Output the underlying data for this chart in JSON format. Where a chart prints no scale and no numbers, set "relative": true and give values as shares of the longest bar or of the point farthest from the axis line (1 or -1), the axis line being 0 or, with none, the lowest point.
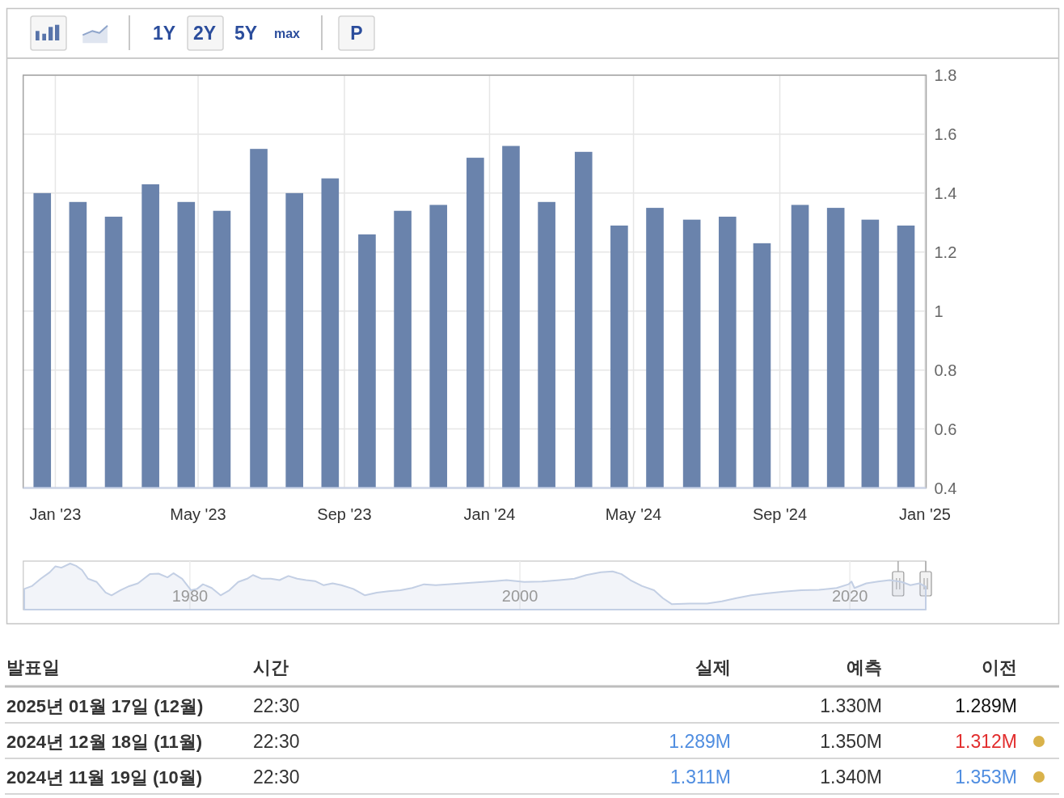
{
  "chart_data": [
    {
      "type": "other",
      "annotations": [
        "1Y",
        "2Y",
        "5Y",
        "max",
        "P"
      ]
    },
    {
      "type": "bar",
      "x": [
        "2022-12-21",
        "2023-01-20",
        "2023-02-19",
        "2023-03-22",
        "2023-04-21",
        "2023-05-21",
        "2023-06-21",
        "2023-07-21",
        "2023-08-20",
        "2023-09-20",
        "2023-10-20",
        "2023-11-19",
        "2023-12-20",
        "2024-01-19",
        "2024-02-18",
        "2024-03-20",
        "2024-04-19",
        "2024-05-19",
        "2024-06-19",
        "2024-07-19",
        "2024-08-17",
        "2024-09-18",
        "2024-10-18",
        "2024-11-16",
        "2024-12-16"
      ],
      "values": [
        1.4,
        1.37,
        1.32,
        1.43,
        1.37,
        1.34,
        1.55,
        1.4,
        1.45,
        1.26,
        1.34,
        1.36,
        1.52,
        1.56,
        1.37,
        1.54,
        1.29,
        1.35,
        1.31,
        1.32,
        1.23,
        1.36,
        1.35,
        1.31,
        1.29
      ],
      "color": "#6a83ac",
      "xlim": [
        "2022-12-05",
        "2025-01-02"
      ],
      "xticks": [
        {
          "value": "2023-01",
          "label": "Jan '23"
        },
        {
          "value": "2023-05",
          "label": "May '23"
        },
        {
          "value": "2023-09",
          "label": "Sep '23"
        },
        {
          "value": "2024-01",
          "label": "Jan '24"
        },
        {
          "value": "2024-05",
          "label": "May '24"
        },
        {
          "value": "2024-09",
          "label": "Sep '24"
        },
        {
          "value": "2025-01",
          "label": "Jan '25"
        }
      ],
      "ylim": [
        0.4,
        1.8
      ],
      "yticks": [
        0.4,
        0.6,
        0.8,
        1,
        1.2,
        1.4,
        1.6,
        1.8
      ],
      "grid": true
    },
    {
      "type": "area",
      "relative": true,
      "color": "#c3cfe4",
      "xlim": [
        1969.9,
        2024.6
      ],
      "xticks": [
        1980,
        2000,
        2020
      ],
      "grid": "x",
      "x": [
        1969.96,
        1970.42,
        1970.96,
        1971.5,
        1971.85,
        1972.21,
        1972.74,
        1973.1,
        1973.46,
        1973.82,
        1974.35,
        1974.89,
        1975.25,
        1975.78,
        1976.32,
        1976.85,
        1977.21,
        1977.57,
        1978.1,
        1978.64,
        1979.0,
        1979.53,
        1980.07,
        1980.43,
        1980.79,
        1981.32,
        1981.86,
        1982.39,
        1982.93,
        1983.47,
        1983.82,
        1984.36,
        1984.9,
        1985.43,
        1985.97,
        1986.5,
        1987.04,
        1987.58,
        1988.11,
        1988.65,
        1989.18,
        1989.9,
        1990.61,
        1991.33,
        1992.04,
        1992.76,
        1993.47,
        1994.19,
        1994.9,
        1995.62,
        1996.51,
        1997.4,
        1998.48,
        1999.19,
        2000.26,
        2001.34,
        2002.41,
        2003.3,
        2004.02,
        2004.91,
        2005.62,
        2006.16,
        2006.7,
        2007.41,
        2008.13,
        2008.66,
        2009.2,
        2010.27,
        2011.34,
        2012.24,
        2013.13,
        2014.02,
        2014.92,
        2015.99,
        2017.06,
        2018.13,
        2019.2,
        2019.92,
        2020.1,
        2020.28,
        2021.0,
        2021.71,
        2022.42,
        2023.14,
        2023.67,
        2024.21,
        2024.6
      ],
      "values": [
        0.45,
        0.51,
        0.67,
        0.81,
        0.94,
        0.91,
        1,
        0.95,
        0.86,
        0.67,
        0.6,
        0.37,
        0.31,
        0.42,
        0.51,
        0.57,
        0.67,
        0.77,
        0.78,
        0.7,
        0.79,
        0.67,
        0.42,
        0.45,
        0.55,
        0.47,
        0.31,
        0.42,
        0.6,
        0.67,
        0.75,
        0.67,
        0.67,
        0.64,
        0.73,
        0.67,
        0.64,
        0.62,
        0.53,
        0.57,
        0.53,
        0.45,
        0.31,
        0.37,
        0.4,
        0.42,
        0.47,
        0.55,
        0.53,
        0.55,
        0.57,
        0.59,
        0.62,
        0.64,
        0.6,
        0.61,
        0.64,
        0.67,
        0.75,
        0.81,
        0.83,
        0.77,
        0.64,
        0.51,
        0.42,
        0.25,
        0.12,
        0.13,
        0.13,
        0.18,
        0.25,
        0.31,
        0.35,
        0.39,
        0.42,
        0.43,
        0.47,
        0.55,
        0.61,
        0.47,
        0.57,
        0.61,
        0.64,
        0.6,
        0.53,
        0.57,
        0.5
      ]
    },
    {
      "type": "other",
      "annotations": [
        "발표일",
        "시간",
        "실제",
        "예측",
        "이전",
        "2025년 01월 17일 (12월)",
        "22:30",
        "1.330M",
        "1.289M",
        "2024년 12월 18일 (11월)",
        "22:30",
        "1.289M",
        "1.350M",
        "1.312M",
        "2024년 11월 19일 (10월)",
        "22:30",
        "1.311M",
        "1.340M",
        "1.353M"
      ]
    }
  ]
}
